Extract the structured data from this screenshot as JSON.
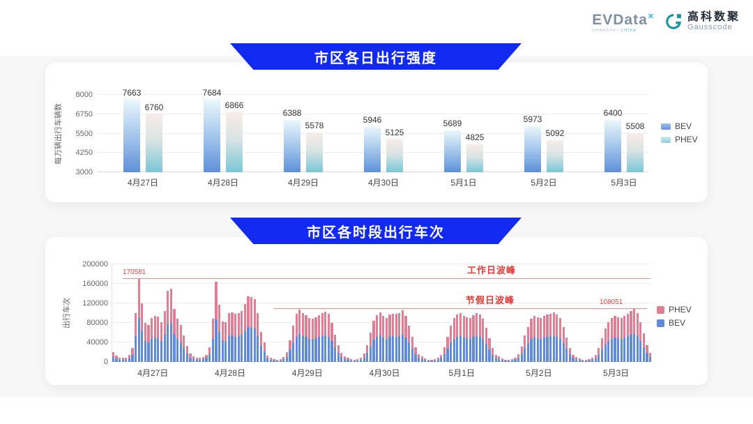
{
  "brand": {
    "evdata": "EVData",
    "evdata_sup": "✕",
    "caption_left": "SHANGHAI",
    "caption_right": "CHINA",
    "gausscode_cn": "高科数聚",
    "gausscode_en": "Gausscode"
  },
  "colors": {
    "banner_blue": "#1129f0",
    "bev_blue": "#5f8cd9",
    "phev_pink": "#e07e95",
    "annotation_red": "#e53935",
    "band_gray": "#f7f7f8"
  },
  "chart_data": [
    {
      "type": "bar",
      "title": "市区各日出行强度",
      "ylabel": "每万辆出行车辆数",
      "ylim": [
        3000,
        8000
      ],
      "yticks": [
        3000,
        4250,
        5500,
        6750,
        8000
      ],
      "grid": true,
      "legend_position": "right",
      "categories": [
        "4月27日",
        "4月28日",
        "4月29日",
        "4月30日",
        "5月1日",
        "5月2日",
        "5月3日"
      ],
      "series": [
        {
          "name": "BEV",
          "values": [
            7663,
            7684,
            6388,
            5946,
            5689,
            5973,
            6400
          ]
        },
        {
          "name": "PHEV",
          "values": [
            6760,
            6866,
            5578,
            5125,
            4825,
            5092,
            5508
          ]
        }
      ]
    },
    {
      "type": "bar",
      "stacked": true,
      "title": "市区各时段出行车次",
      "ylabel": "出行车次",
      "ylim": [
        0,
        200000
      ],
      "yticks": [
        0,
        40000,
        80000,
        120000,
        160000,
        200000
      ],
      "grid": true,
      "legend_position": "right",
      "hours_per_day": 24,
      "categories": [
        "4月27日",
        "4月28日",
        "4月29日",
        "4月30日",
        "5月1日",
        "5月2日",
        "5月3日"
      ],
      "annotations": {
        "workday_peak": {
          "label": "工作日波峰",
          "value": 170581,
          "value_label": "170581"
        },
        "holiday_peak": {
          "label": "节假日波峰",
          "value": 108051,
          "value_label": "108051"
        }
      },
      "series": [
        {
          "name": "BEV",
          "values_by_day": [
            [
              10600,
              6900,
              4800,
              4200,
              4800,
              7400,
              14800,
              53000,
              90000,
              63600,
              42400,
              40300,
              47700,
              50400,
              49300,
              43500,
              55700,
              77400,
              79500,
              57200,
              47200,
              40300,
              29200,
              17500
            ],
            [
              9000,
              5800,
              4200,
              4200,
              5300,
              8000,
              15900,
              46600,
              87000,
              62000,
              44000,
              43500,
              53000,
              54100,
              51900,
              53000,
              55100,
              62500,
              71000,
              70500,
              68400,
              53000,
              32900,
              21200
            ],
            [
              6900,
              4800,
              3200,
              2700,
              3200,
              5300,
              10600,
              23900,
              39800,
              51900,
              56700,
              53000,
              50900,
              47700,
              46600,
              48800,
              50900,
              53000,
              54600,
              51900,
              42400,
              29700,
              18000,
              9500
            ],
            [
              6400,
              4200,
              3200,
              2700,
              3200,
              4800,
              9000,
              18600,
              31800,
              45100,
              50900,
              54100,
              50400,
              47700,
              51400,
              52500,
              51900,
              53000,
              56200,
              50400,
              39800,
              27600,
              15900,
              8500
            ],
            [
              5800,
              3700,
              2700,
              2700,
              3200,
              4200,
              8000,
              15900,
              27600,
              39800,
              47700,
              51400,
              53000,
              50400,
              48800,
              47700,
              50900,
              53000,
              51400,
              46600,
              37100,
              25400,
              14800,
              8000
            ],
            [
              5800,
              3700,
              2700,
              2700,
              3200,
              4800,
              8500,
              17000,
              29200,
              38200,
              46600,
              49800,
              48800,
              47700,
              49800,
              51400,
              52500,
              53500,
              51400,
              47700,
              38200,
              26500,
              15400,
              8000
            ],
            [
              5300,
              3700,
              2700,
              2700,
              3200,
              4200,
              7400,
              14800,
              25400,
              36000,
              43500,
              47700,
              50400,
              48800,
              47700,
              49800,
              52500,
              55100,
              57000,
              53000,
              43500,
              30700,
              18000,
              9500
            ]
          ]
        },
        {
          "name": "PHEV",
          "values_by_day": [
            [
              9400,
              6100,
              4200,
              3800,
              4200,
              6600,
              13200,
              47000,
              80581,
              56400,
              37600,
              35700,
              42300,
              44600,
              43700,
              38500,
              49300,
              68600,
              70500,
              50800,
              41800,
              35700,
              25800,
              15500
            ],
            [
              8000,
              5200,
              3800,
              3800,
              4700,
              7000,
              14100,
              41400,
              77000,
              55000,
              39000,
              38500,
              47000,
              47900,
              46100,
              47000,
              48900,
              55500,
              63000,
              62500,
              60600,
              47000,
              29100,
              18800
            ],
            [
              6100,
              4200,
              2800,
              2300,
              2800,
              4700,
              9400,
              21100,
              35200,
              46100,
              50300,
              47000,
              45100,
              42300,
              41400,
              43200,
              45100,
              47000,
              48400,
              46100,
              37600,
              26300,
              16000,
              8500
            ],
            [
              5600,
              3800,
              2800,
              2300,
              2800,
              4200,
              8000,
              16400,
              28200,
              39900,
              45100,
              47900,
              44600,
              42300,
              45600,
              46500,
              46100,
              47000,
              49800,
              44600,
              35200,
              24400,
              14100,
              7500
            ],
            [
              5200,
              3300,
              2300,
              2300,
              2800,
              3800,
              7000,
              14100,
              24400,
              35200,
              42300,
              45600,
              47000,
              44600,
              43200,
              42300,
              45100,
              47000,
              45600,
              41400,
              32900,
              22600,
              13200,
              7000
            ],
            [
              5200,
              3300,
              2300,
              2300,
              2800,
              4200,
              7500,
              15000,
              25800,
              33800,
              41400,
              44200,
              43200,
              42300,
              44200,
              45600,
              46500,
              47500,
              45600,
              42300,
              33800,
              23500,
              13600,
              7000
            ],
            [
              4700,
              3300,
              2300,
              2300,
              2800,
              3800,
              6600,
              13200,
              22600,
              32000,
              38500,
              42300,
              44600,
              43200,
              42300,
              44200,
              46500,
              48900,
              51051,
              47000,
              38500,
              27300,
              16000,
              8500
            ]
          ]
        }
      ]
    }
  ]
}
